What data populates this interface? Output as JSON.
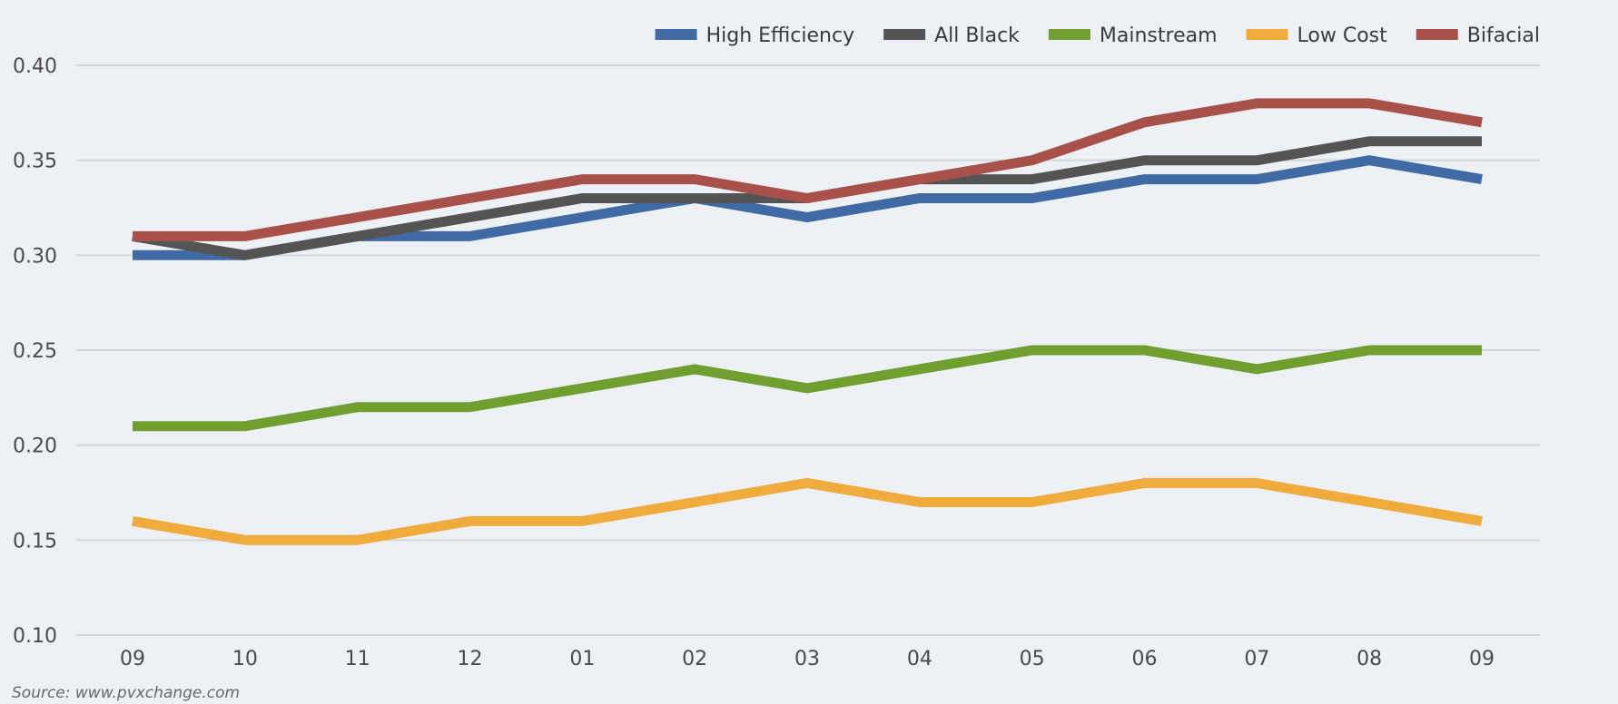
{
  "chart_data": {
    "type": "line",
    "title": "",
    "xlabel": "",
    "ylabel": "",
    "categories": [
      "09",
      "10",
      "11",
      "12",
      "01",
      "02",
      "03",
      "04",
      "05",
      "06",
      "07",
      "08",
      "09"
    ],
    "ylim": [
      0.1,
      0.4
    ],
    "yticks": [
      "0.40",
      "0.35",
      "0.30",
      "0.25",
      "0.20",
      "0.15",
      "0.10"
    ],
    "grid": true,
    "legend_position": "top-right",
    "series": [
      {
        "name": "High Efficiency",
        "color": "#3f6aa3",
        "values": [
          0.3,
          0.3,
          0.31,
          0.31,
          0.32,
          0.33,
          0.32,
          0.33,
          0.33,
          0.34,
          0.34,
          0.35,
          0.34
        ]
      },
      {
        "name": "All Black",
        "color": "#545454",
        "values": [
          0.31,
          0.3,
          0.31,
          0.32,
          0.33,
          0.33,
          0.33,
          0.34,
          0.34,
          0.35,
          0.35,
          0.36,
          0.36
        ]
      },
      {
        "name": "Mainstream",
        "color": "#6f9f2e",
        "values": [
          0.21,
          0.21,
          0.22,
          0.22,
          0.23,
          0.24,
          0.23,
          0.24,
          0.25,
          0.25,
          0.24,
          0.25,
          0.25
        ]
      },
      {
        "name": "Low Cost",
        "color": "#efac3c",
        "values": [
          0.16,
          0.15,
          0.15,
          0.16,
          0.16,
          0.17,
          0.18,
          0.17,
          0.17,
          0.18,
          0.18,
          0.17,
          0.16
        ]
      },
      {
        "name": "Bifacial",
        "color": "#a8504a",
        "values": [
          0.31,
          0.31,
          0.32,
          0.33,
          0.34,
          0.34,
          0.33,
          0.34,
          0.35,
          0.37,
          0.38,
          0.38,
          0.37
        ]
      }
    ]
  },
  "source_note": "Source: www.pvxchange.com"
}
